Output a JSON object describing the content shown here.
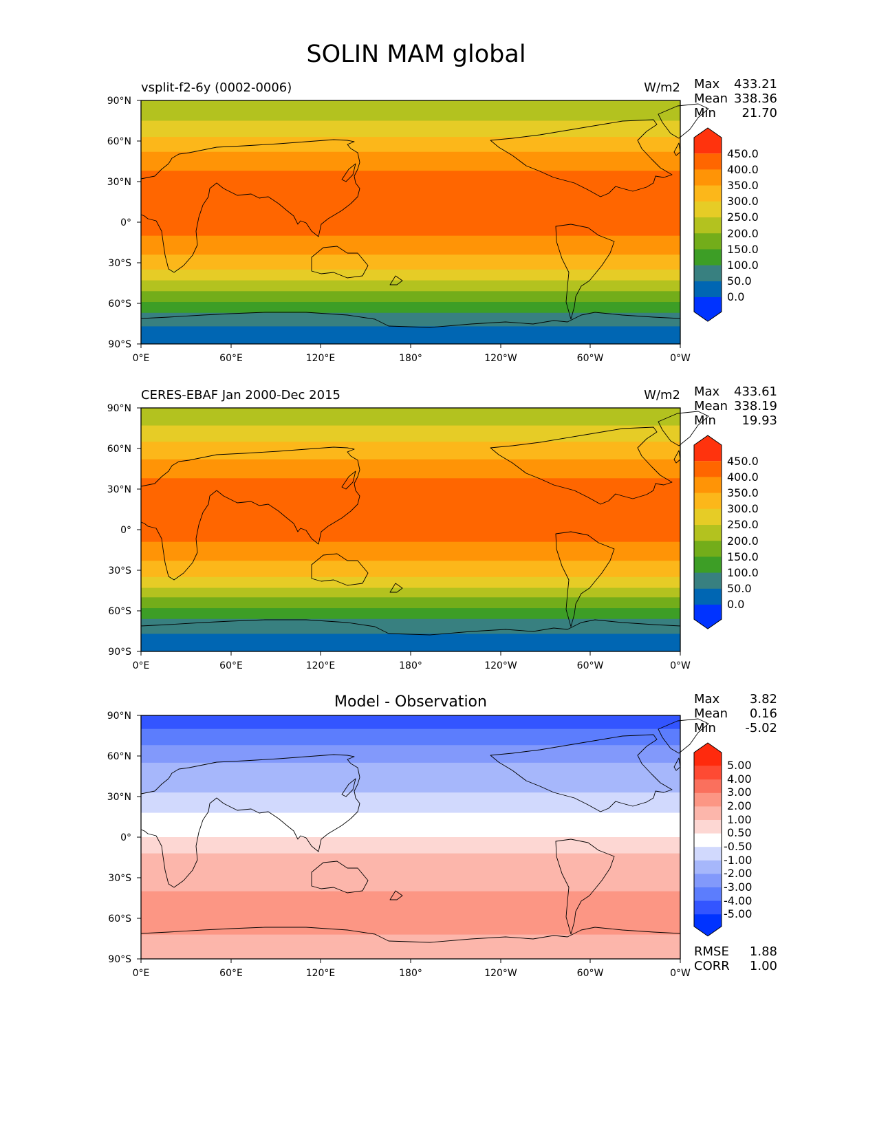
{
  "title": "SOLIN MAM global",
  "colors": {
    "abs": [
      "#0033ff",
      "#0066b3",
      "#388080",
      "#3d9e26",
      "#73ad1a",
      "#b3c21f",
      "#e6cc26",
      "#fcb71a",
      "#ff9406",
      "#ff6600",
      "#ff330d"
    ],
    "diff": [
      "#0033ff",
      "#3355ff",
      "#5c7dfd",
      "#8299fb",
      "#a6b7fb",
      "#d1d9fd",
      "#ffffff",
      "#fdd7d3",
      "#fcb6ab",
      "#fc9684",
      "#fa705d",
      "#fe4a33",
      "#ff2a0d"
    ]
  },
  "chart_data": [
    {
      "type": "heatmap",
      "panel": "model",
      "title_left": "vsplit-f2-6y (0002-0006)",
      "units": "W/m2",
      "stats": {
        "Max": "433.21",
        "Mean": "338.36",
        "Min": "21.70"
      },
      "xticks": [
        "0°E",
        "60°E",
        "120°E",
        "180°",
        "120°W",
        "60°W",
        "0°W"
      ],
      "yticks": [
        "90°N",
        "60°N",
        "30°N",
        "0°",
        "30°S",
        "60°S",
        "90°S"
      ],
      "xlim": [
        0,
        360
      ],
      "ylim": [
        -90,
        90
      ],
      "levels": [
        "0.0",
        "50.0",
        "100.0",
        "150.0",
        "200.0",
        "250.0",
        "300.0",
        "350.0",
        "400.0",
        "450.0"
      ],
      "bands": [
        {
          "lat_top": 90,
          "lat_bottom": 75,
          "level": 5
        },
        {
          "lat_top": 75,
          "lat_bottom": 63,
          "level": 6
        },
        {
          "lat_top": 63,
          "lat_bottom": 52,
          "level": 7
        },
        {
          "lat_top": 52,
          "lat_bottom": 38,
          "level": 8
        },
        {
          "lat_top": 38,
          "lat_bottom": -10,
          "level": 9
        },
        {
          "lat_top": -10,
          "lat_bottom": -24,
          "level": 8
        },
        {
          "lat_top": -24,
          "lat_bottom": -35,
          "level": 7
        },
        {
          "lat_top": -35,
          "lat_bottom": -43,
          "level": 6
        },
        {
          "lat_top": -43,
          "lat_bottom": -51,
          "level": 5
        },
        {
          "lat_top": -51,
          "lat_bottom": -59,
          "level": 4
        },
        {
          "lat_top": -59,
          "lat_bottom": -67,
          "level": 3
        },
        {
          "lat_top": -67,
          "lat_bottom": -77,
          "level": 2
        },
        {
          "lat_top": -77,
          "lat_bottom": -90,
          "level": 1
        }
      ]
    },
    {
      "type": "heatmap",
      "panel": "obs",
      "title_left": "CERES-EBAF Jan 2000-Dec 2015",
      "units": "W/m2",
      "stats": {
        "Max": "433.61",
        "Mean": "338.19",
        "Min": "19.93"
      },
      "xticks": [
        "0°E",
        "60°E",
        "120°E",
        "180°",
        "120°W",
        "60°W",
        "0°W"
      ],
      "yticks": [
        "90°N",
        "60°N",
        "30°N",
        "0°",
        "30°S",
        "60°S",
        "90°S"
      ],
      "xlim": [
        0,
        360
      ],
      "ylim": [
        -90,
        90
      ],
      "levels": [
        "0.0",
        "50.0",
        "100.0",
        "150.0",
        "200.0",
        "250.0",
        "300.0",
        "350.0",
        "400.0",
        "450.0"
      ],
      "bands": [
        {
          "lat_top": 90,
          "lat_bottom": 77,
          "level": 5
        },
        {
          "lat_top": 77,
          "lat_bottom": 65,
          "level": 6
        },
        {
          "lat_top": 65,
          "lat_bottom": 52,
          "level": 7
        },
        {
          "lat_top": 52,
          "lat_bottom": 38,
          "level": 8
        },
        {
          "lat_top": 38,
          "lat_bottom": -9,
          "level": 9
        },
        {
          "lat_top": -9,
          "lat_bottom": -23,
          "level": 8
        },
        {
          "lat_top": -23,
          "lat_bottom": -35,
          "level": 7
        },
        {
          "lat_top": -35,
          "lat_bottom": -43,
          "level": 6
        },
        {
          "lat_top": -43,
          "lat_bottom": -50,
          "level": 5
        },
        {
          "lat_top": -50,
          "lat_bottom": -58,
          "level": 4
        },
        {
          "lat_top": -58,
          "lat_bottom": -66,
          "level": 3
        },
        {
          "lat_top": -66,
          "lat_bottom": -77,
          "level": 2
        },
        {
          "lat_top": -77,
          "lat_bottom": -90,
          "level": 1
        }
      ]
    },
    {
      "type": "heatmap",
      "panel": "diff",
      "title_center": "Model - Observation",
      "stats": {
        "Max": "3.82",
        "Mean": "0.16",
        "Min": "-5.02"
      },
      "metrics": {
        "RMSE": "1.88",
        "CORR": "1.00"
      },
      "xticks": [
        "0°E",
        "60°E",
        "120°E",
        "180°",
        "120°W",
        "60°W",
        "0°W"
      ],
      "yticks": [
        "90°N",
        "60°N",
        "30°N",
        "0°",
        "30°S",
        "60°S",
        "90°S"
      ],
      "xlim": [
        0,
        360
      ],
      "ylim": [
        -90,
        90
      ],
      "levels": [
        "-5.00",
        "-4.00",
        "-3.00",
        "-2.00",
        "-1.00",
        "-0.50",
        "0.50",
        "1.00",
        "2.00",
        "3.00",
        "4.00",
        "5.00"
      ],
      "bands": [
        {
          "lat_top": 90,
          "lat_bottom": 80,
          "level": 1
        },
        {
          "lat_top": 80,
          "lat_bottom": 68,
          "level": 2
        },
        {
          "lat_top": 68,
          "lat_bottom": 55,
          "level": 3
        },
        {
          "lat_top": 55,
          "lat_bottom": 33,
          "level": 4
        },
        {
          "lat_top": 33,
          "lat_bottom": 18,
          "level": 5
        },
        {
          "lat_top": 18,
          "lat_bottom": 0,
          "level": 6
        },
        {
          "lat_top": 0,
          "lat_bottom": -12,
          "level": 7
        },
        {
          "lat_top": -12,
          "lat_bottom": -40,
          "level": 8
        },
        {
          "lat_top": -40,
          "lat_bottom": -72,
          "level": 9
        },
        {
          "lat_top": -72,
          "lat_bottom": -78,
          "level": 8
        },
        {
          "lat_top": -78,
          "lat_bottom": -90,
          "level": 8
        }
      ]
    }
  ]
}
